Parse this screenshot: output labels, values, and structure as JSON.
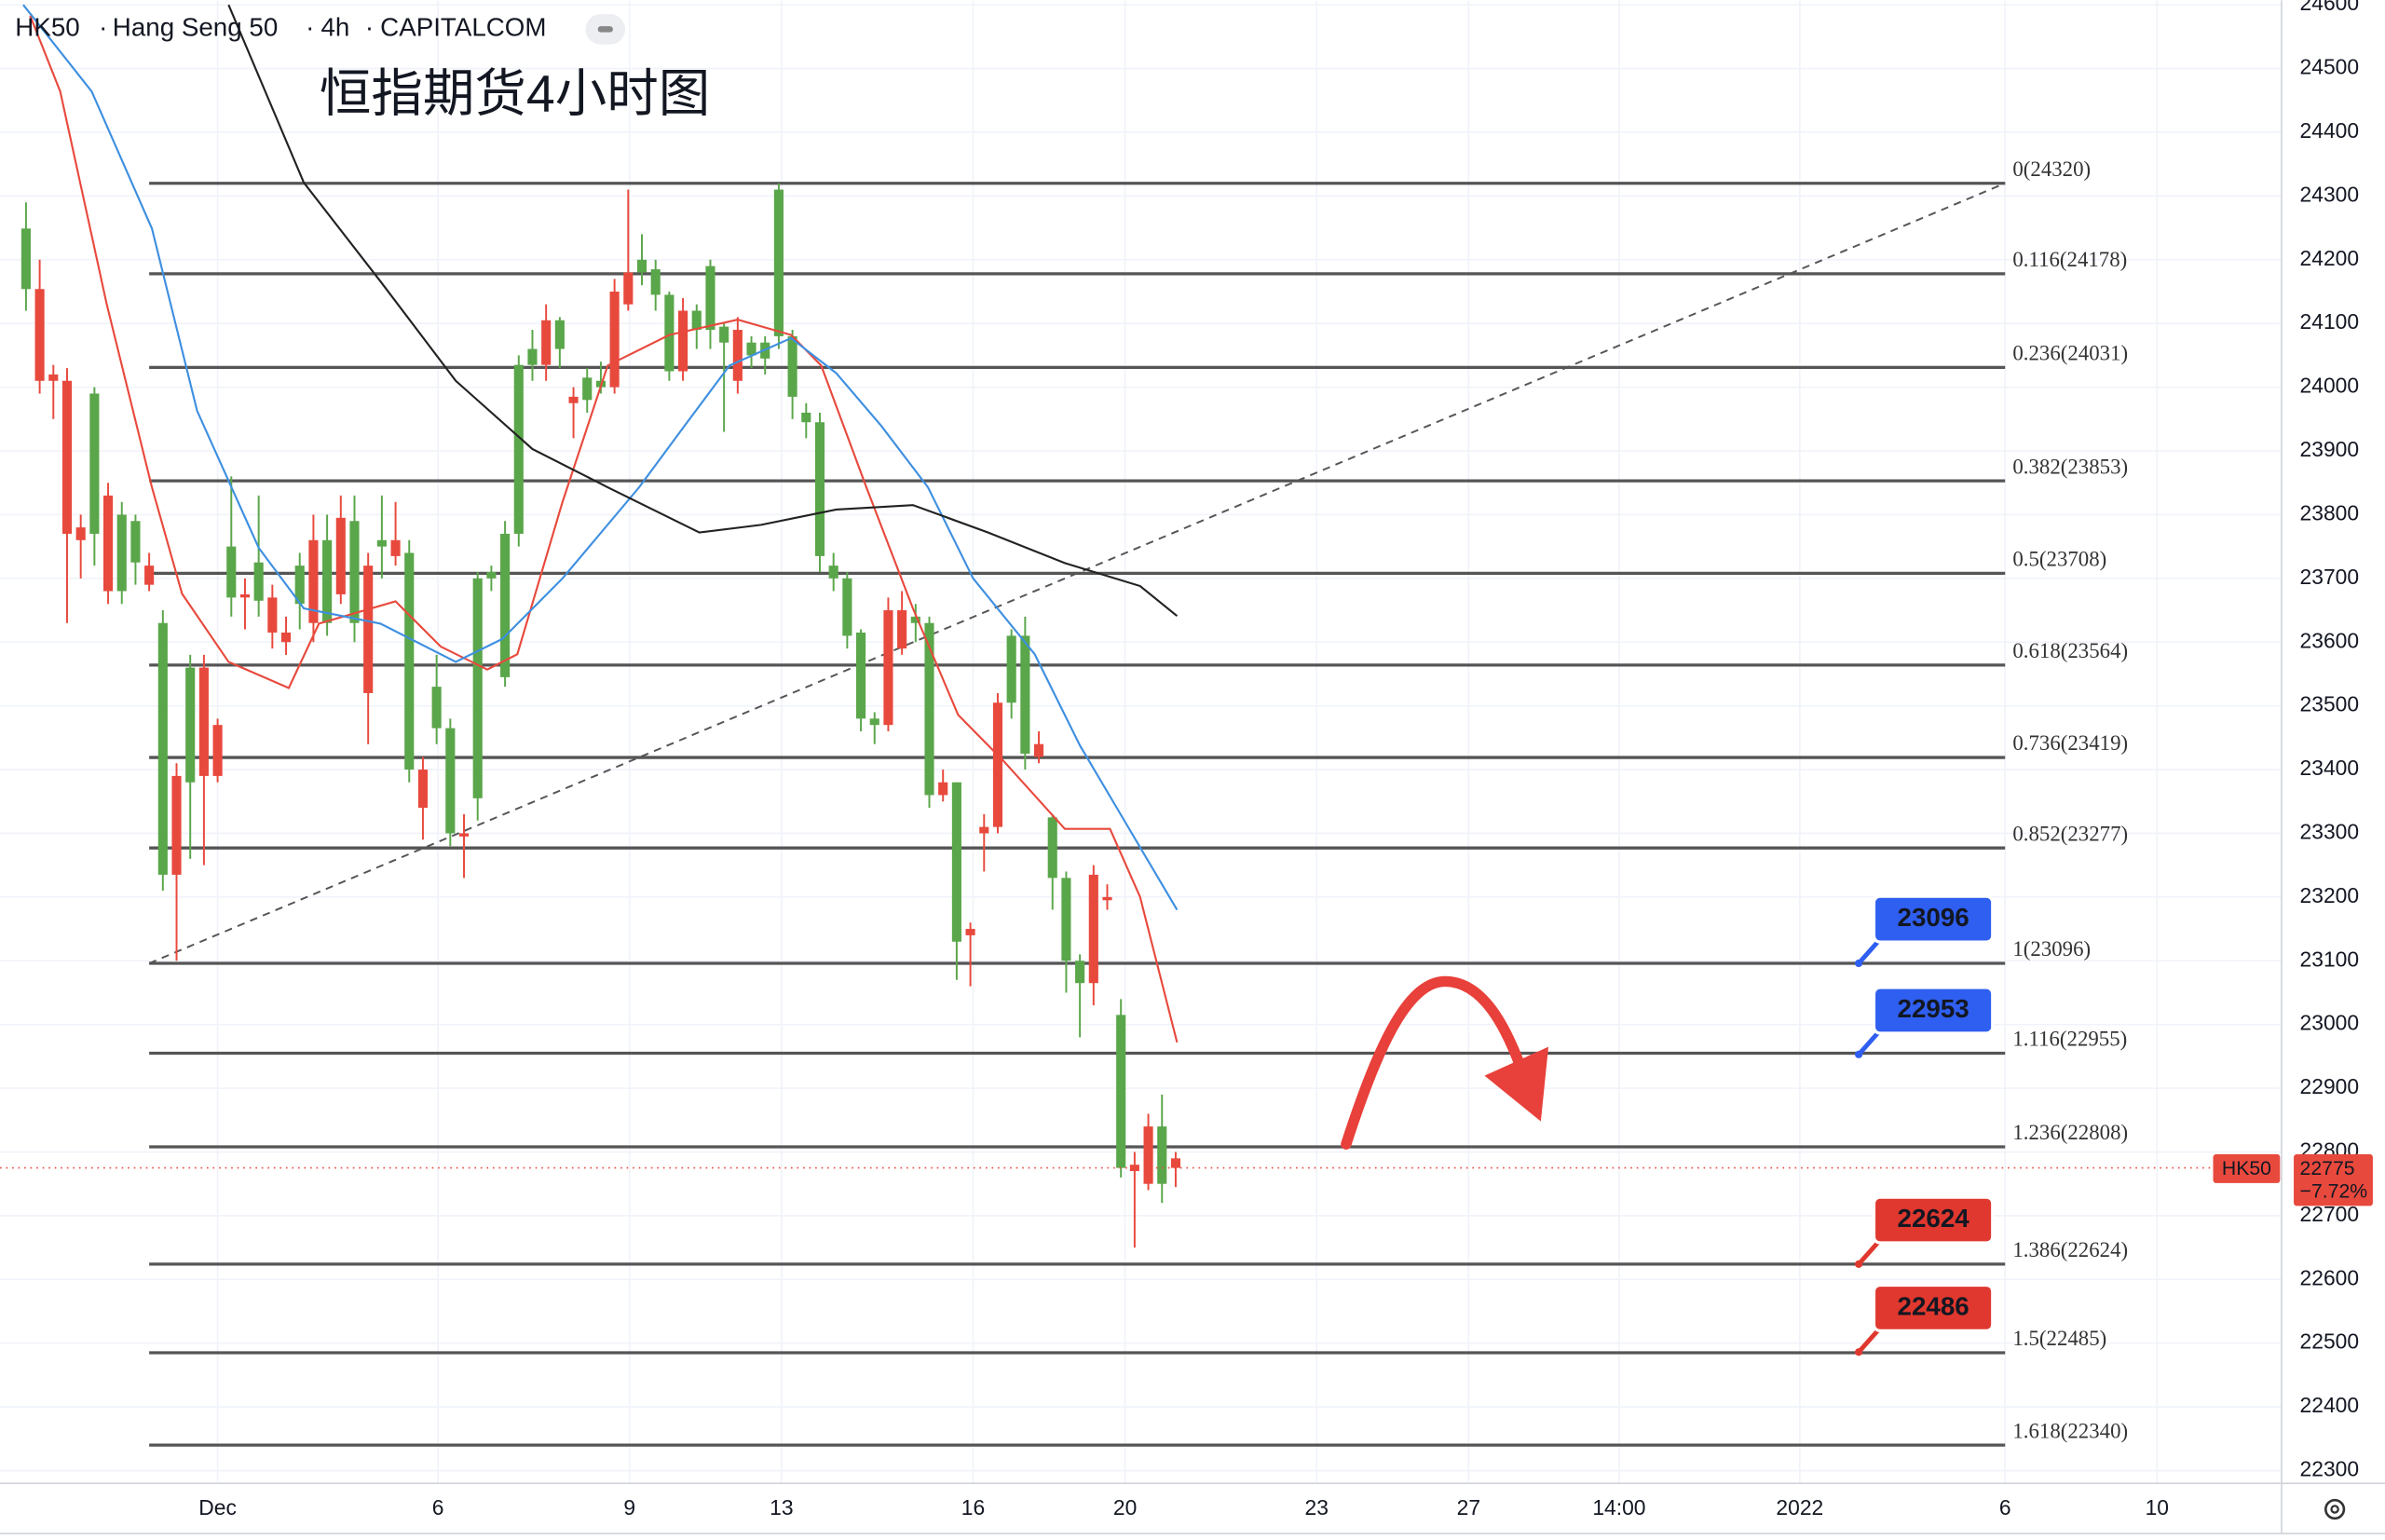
{
  "chart_data": {
    "type": "candlestick",
    "header": {
      "symbol": "HK50",
      "name": "Hang Seng 50",
      "interval": "4h",
      "source": "CAPITALCOM"
    },
    "title": "恒指期货4小时图",
    "xlim": [
      -1.9,
      164.8
    ],
    "ylim": [
      22280,
      24607
    ],
    "xticks": [
      {
        "value": 14.0,
        "label": "Dec"
      },
      {
        "value": 30.1,
        "label": "6"
      },
      {
        "value": 44.1,
        "label": "9"
      },
      {
        "value": 55.2,
        "label": "13"
      },
      {
        "value": 69.2,
        "label": "16"
      },
      {
        "value": 80.3,
        "label": "20"
      },
      {
        "value": 94.3,
        "label": "23"
      },
      {
        "value": 105.4,
        "label": "27"
      },
      {
        "value": 116.4,
        "label": "14:00"
      },
      {
        "value": 129.6,
        "label": "2022"
      },
      {
        "value": 144.6,
        "label": "6"
      },
      {
        "value": 155.7,
        "label": "10"
      }
    ],
    "yticks": [
      22300,
      22400,
      22500,
      22600,
      22700,
      22800,
      22900,
      23000,
      23100,
      23200,
      23300,
      23400,
      23500,
      23600,
      23700,
      23800,
      23900,
      24000,
      24100,
      24200,
      24300,
      24400,
      24500,
      24600
    ],
    "grid": true,
    "up_color": "#5aa64a",
    "down_color": "#e8493d",
    "candles": [
      [
        24154,
        24290,
        24120,
        24249
      ],
      [
        24154,
        24200,
        23990,
        24010
      ],
      [
        24020,
        24035,
        23950,
        24010
      ],
      [
        24010,
        24030,
        23630,
        23770
      ],
      [
        23780,
        23800,
        23700,
        23760
      ],
      [
        23770,
        24000,
        23720,
        23990
      ],
      [
        23830,
        23850,
        23660,
        23680
      ],
      [
        23680,
        23820,
        23660,
        23800
      ],
      [
        23725,
        23800,
        23690,
        23790
      ],
      [
        23720,
        23740,
        23680,
        23690
      ],
      [
        23235,
        23650,
        23210,
        23630
      ],
      [
        23390,
        23410,
        23100,
        23235
      ],
      [
        23380,
        23580,
        23260,
        23560
      ],
      [
        23560,
        23580,
        23250,
        23390
      ],
      [
        23470,
        23480,
        23380,
        23390
      ],
      [
        23670,
        23860,
        23640,
        23750
      ],
      [
        23675,
        23700,
        23620,
        23670
      ],
      [
        23665,
        23830,
        23640,
        23725
      ],
      [
        23670,
        23690,
        23590,
        23615
      ],
      [
        23615,
        23640,
        23580,
        23600
      ],
      [
        23660,
        23740,
        23620,
        23720
      ],
      [
        23760,
        23800,
        23600,
        23630
      ],
      [
        23630,
        23800,
        23610,
        23760
      ],
      [
        23795,
        23830,
        23660,
        23675
      ],
      [
        23630,
        23830,
        23600,
        23790
      ],
      [
        23720,
        23740,
        23440,
        23520
      ],
      [
        23750,
        23830,
        23700,
        23760
      ],
      [
        23760,
        23820,
        23720,
        23735
      ],
      [
        23400,
        23760,
        23380,
        23740
      ],
      [
        23400,
        23420,
        23290,
        23340
      ],
      [
        23465,
        23580,
        23440,
        23530
      ],
      [
        23300,
        23480,
        23280,
        23465
      ],
      [
        23300,
        23330,
        23230,
        23295
      ],
      [
        23355,
        23710,
        23320,
        23700
      ],
      [
        23700,
        23720,
        23680,
        23710
      ],
      [
        23545,
        23790,
        23530,
        23770
      ],
      [
        23770,
        24050,
        23750,
        24035
      ],
      [
        24035,
        24090,
        24010,
        24060
      ],
      [
        24105,
        24130,
        24010,
        24035
      ],
      [
        24060,
        24110,
        24030,
        24105
      ],
      [
        23985,
        24000,
        23920,
        23975
      ],
      [
        23980,
        24030,
        23960,
        24015
      ],
      [
        24000,
        24040,
        23990,
        24010
      ],
      [
        24150,
        24170,
        23990,
        24000
      ],
      [
        24180,
        24310,
        24120,
        24130
      ],
      [
        24180,
        24240,
        24160,
        24200
      ],
      [
        24145,
        24200,
        24120,
        24185
      ],
      [
        24025,
        24150,
        24010,
        24145
      ],
      [
        24120,
        24140,
        24010,
        24025
      ],
      [
        24090,
        24130,
        24060,
        24120
      ],
      [
        24090,
        24200,
        24060,
        24190
      ],
      [
        24070,
        24100,
        23930,
        24095
      ],
      [
        24090,
        24110,
        23990,
        24010
      ],
      [
        24050,
        24080,
        24030,
        24070
      ],
      [
        24045,
        24080,
        24020,
        24070
      ],
      [
        24080,
        24320,
        24060,
        24310
      ],
      [
        23985,
        24090,
        23950,
        24080
      ],
      [
        23945,
        23975,
        23920,
        23960
      ],
      [
        23735,
        23960,
        23710,
        23945
      ],
      [
        23700,
        23740,
        23680,
        23720
      ],
      [
        23610,
        23710,
        23590,
        23700
      ],
      [
        23480,
        23620,
        23460,
        23615
      ],
      [
        23470,
        23490,
        23440,
        23480
      ],
      [
        23650,
        23670,
        23460,
        23470
      ],
      [
        23650,
        23680,
        23580,
        23590
      ],
      [
        23630,
        23660,
        23600,
        23640
      ],
      [
        23360,
        23640,
        23340,
        23630
      ],
      [
        23380,
        23400,
        23350,
        23360
      ],
      [
        23130,
        23380,
        23070,
        23380
      ],
      [
        23150,
        23160,
        23060,
        23140
      ],
      [
        23310,
        23330,
        23240,
        23300
      ],
      [
        23505,
        23520,
        23300,
        23310
      ],
      [
        23505,
        23620,
        23480,
        23610
      ],
      [
        23425,
        23640,
        23400,
        23610
      ],
      [
        23440,
        23460,
        23410,
        23420
      ],
      [
        23230,
        23330,
        23180,
        23325
      ],
      [
        23100,
        23240,
        23050,
        23230
      ],
      [
        23065,
        23110,
        22980,
        23100
      ],
      [
        23235,
        23250,
        23030,
        23065
      ],
      [
        23200,
        23220,
        23180,
        23195
      ],
      [
        22775,
        23040,
        22760,
        23015
      ],
      [
        22780,
        22800,
        22650,
        22770
      ],
      [
        22840,
        22860,
        22740,
        22750
      ],
      [
        22750,
        22890,
        22720,
        22840
      ],
      [
        22790,
        22800,
        22745,
        22775
      ]
    ],
    "moving_averages": [
      {
        "color": "#e8493d",
        "x": [
          0.3,
          2.5,
          5.9,
          9.2,
          11.4,
          14.8,
          19.2,
          21.4,
          27.0,
          30.3,
          33.7,
          35.9,
          39.2,
          42.5,
          47.0,
          52.0,
          55.9,
          58.1,
          61.4,
          64.8,
          68.1,
          71.4,
          75.9,
          79.2,
          81.4,
          84.1
        ],
        "values": [
          24583,
          24464,
          24130,
          23843,
          23676,
          23569,
          23528,
          23629,
          23664,
          23593,
          23557,
          23581,
          23820,
          24034,
          24082,
          24106,
          24082,
          24034,
          23843,
          23653,
          23486,
          23414,
          23307,
          23307,
          23200,
          22972
        ]
      },
      {
        "color": "#3d8fe0",
        "x": [
          -0.2,
          4.8,
          9.2,
          12.5,
          17.0,
          20.3,
          25.9,
          31.4,
          34.8,
          39.2,
          44.8,
          48.1,
          51.4,
          55.9,
          59.2,
          62.5,
          65.9,
          69.2,
          73.7,
          77.0,
          80.3,
          84.1
        ],
        "values": [
          24600,
          24464,
          24249,
          23963,
          23748,
          23653,
          23629,
          23569,
          23605,
          23700,
          23843,
          23939,
          24034,
          24077,
          24022,
          23939,
          23843,
          23700,
          23581,
          23438,
          23318,
          23180
        ]
      },
      {
        "color": "#222222",
        "x": [
          14.8,
          20.3,
          25.9,
          31.4,
          37.0,
          42.5,
          49.2,
          53.7,
          59.2,
          64.8,
          70.3,
          75.9,
          81.4,
          84.1
        ],
        "values": [
          24600,
          24321,
          24166,
          24010,
          23903,
          23843,
          23772,
          23784,
          23808,
          23815,
          23772,
          23724,
          23688,
          23641
        ]
      }
    ],
    "trendline": {
      "x": [
        9,
        144.6
      ],
      "values": [
        23096,
        24320
      ],
      "dashed": true,
      "color": "#555555"
    },
    "fib_levels": [
      {
        "value": 24320,
        "label": "0(24320)"
      },
      {
        "value": 24178,
        "label": "0.116(24178)"
      },
      {
        "value": 24031,
        "label": "0.236(24031)"
      },
      {
        "value": 23853,
        "label": "0.382(23853)"
      },
      {
        "value": 23708,
        "label": "0.5(23708)"
      },
      {
        "value": 23564,
        "label": "0.618(23564)"
      },
      {
        "value": 23419,
        "label": "0.736(23419)"
      },
      {
        "value": 23277,
        "label": "0.852(23277)"
      },
      {
        "value": 23096,
        "label": "1(23096)"
      },
      {
        "value": 22955,
        "label": "1.116(22955)"
      },
      {
        "value": 22808,
        "label": "1.236(22808)"
      },
      {
        "value": 22624,
        "label": "1.386(22624)"
      },
      {
        "value": 22485,
        "label": "1.5(22485)"
      },
      {
        "value": 22340,
        "label": "1.618(22340)"
      }
    ],
    "price_tags": [
      {
        "value": 23096,
        "color": "#2f5ff0"
      },
      {
        "value": 22953,
        "color": "#2f5ff0"
      },
      {
        "value": 22624,
        "color": "#e0382e"
      },
      {
        "value": 22486,
        "color": "#e0382e"
      }
    ],
    "current_price": {
      "symbol": "HK50",
      "value": 22775,
      "change": "−7.72%",
      "color": "#e8493d"
    }
  }
}
